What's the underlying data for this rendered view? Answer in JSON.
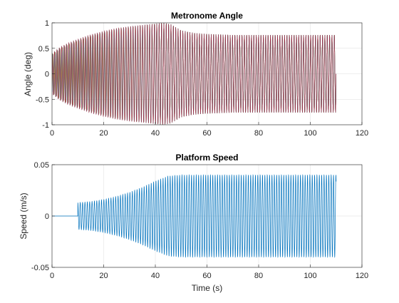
{
  "chart_data": [
    {
      "type": "line",
      "title": "Metronome Angle",
      "xlabel": "",
      "ylabel": "Angle (deg)",
      "xlim": [
        0,
        120
      ],
      "ylim": [
        -1,
        1
      ],
      "xticks": [
        0,
        20,
        40,
        60,
        80,
        100,
        120
      ],
      "xtick_labels": [
        "0",
        "20",
        "40",
        "60",
        "80",
        "100",
        "120"
      ],
      "yticks": [
        -1,
        -0.5,
        0,
        0.5,
        1
      ],
      "ytick_labels": [
        "-1",
        "-0.5",
        "0",
        "0.5",
        "1"
      ],
      "grid": true,
      "box": true,
      "time_range": [
        0,
        110
      ],
      "oscillation_cycles": 120,
      "envelope": {
        "t": [
          0,
          3,
          6,
          10,
          15,
          20,
          25,
          30,
          35,
          40,
          43,
          46,
          50,
          55,
          60,
          65,
          70,
          80,
          90,
          100,
          110
        ],
        "amplitude": [
          0.38,
          0.5,
          0.58,
          0.66,
          0.75,
          0.82,
          0.88,
          0.92,
          0.95,
          0.98,
          1.0,
          0.97,
          0.85,
          0.8,
          0.78,
          0.77,
          0.76,
          0.76,
          0.76,
          0.76,
          0.76
        ]
      },
      "series_colors": [
        "#0072BD",
        "#D95319",
        "#EDB120",
        "#7E2F8E",
        "#77AC30",
        "#4DBEEE",
        "#A2142F"
      ]
    },
    {
      "type": "line",
      "title": "Platform Speed",
      "xlabel": "Time (s)",
      "ylabel": "Speed (m/s)",
      "xlim": [
        0,
        120
      ],
      "ylim": [
        -0.05,
        0.05
      ],
      "xticks": [
        0,
        20,
        40,
        60,
        80,
        100,
        120
      ],
      "xtick_labels": [
        "0",
        "20",
        "40",
        "60",
        "80",
        "100",
        "120"
      ],
      "yticks": [
        -0.05,
        0,
        0.05
      ],
      "ytick_labels": [
        "-0.05",
        "0",
        "0.05"
      ],
      "grid": true,
      "box": true,
      "time_range": [
        0,
        110
      ],
      "start_time": 10,
      "oscillation_cycles": 120,
      "envelope": {
        "t": [
          10,
          15,
          20,
          25,
          30,
          35,
          40,
          45,
          50,
          60,
          70,
          80,
          90,
          100,
          110
        ],
        "amplitude": [
          0.013,
          0.014,
          0.016,
          0.019,
          0.023,
          0.028,
          0.034,
          0.039,
          0.04,
          0.04,
          0.04,
          0.04,
          0.04,
          0.04,
          0.04
        ]
      },
      "series_colors": [
        "#0072BD"
      ]
    }
  ]
}
